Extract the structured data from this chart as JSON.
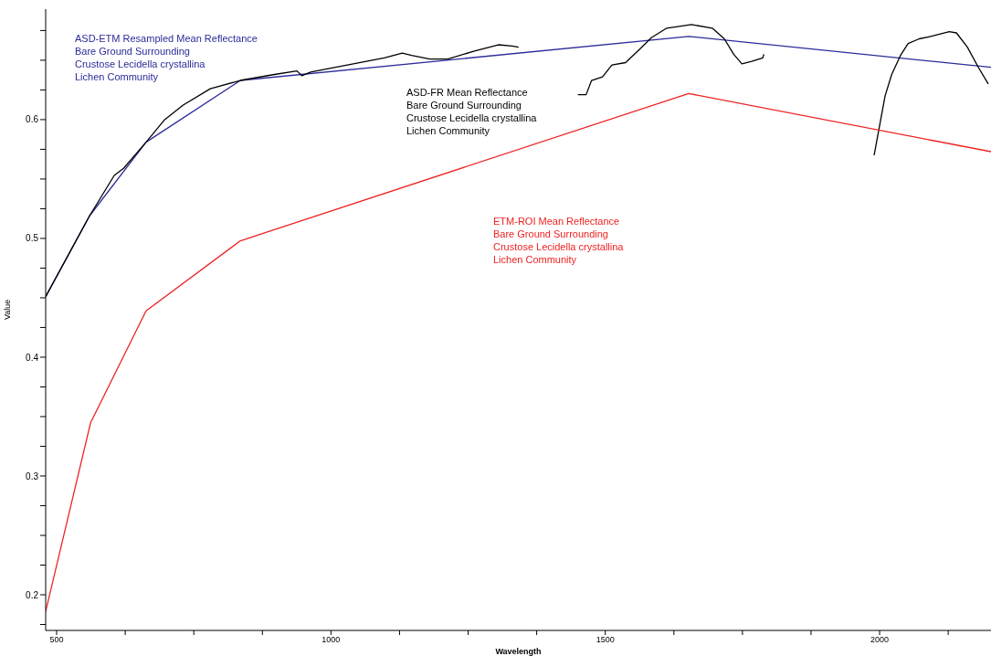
{
  "chart_data": {
    "type": "line",
    "xlabel": "Wavelength",
    "ylabel": "Value",
    "xlim": [
      480,
      2203
    ],
    "ylim": [
      0.17,
      0.693
    ],
    "xticks": [
      500,
      {
        "value": 625,
        "label": null
      },
      {
        "value": 750,
        "label": null
      },
      {
        "value": 875,
        "label": null
      },
      1000,
      {
        "value": 1125,
        "label": null
      },
      {
        "value": 1250,
        "label": null
      },
      {
        "value": 1375,
        "label": null
      },
      1500,
      {
        "value": 1625,
        "label": null
      },
      {
        "value": 1750,
        "label": null
      },
      {
        "value": 1875,
        "label": null
      },
      2000,
      {
        "value": 2125,
        "label": null
      }
    ],
    "yticks": [
      {
        "value": 0.175,
        "label": null
      },
      0.2,
      {
        "value": 0.225,
        "label": null
      },
      {
        "value": 0.25,
        "label": null
      },
      {
        "value": 0.275,
        "label": null
      },
      0.3,
      {
        "value": 0.325,
        "label": null
      },
      {
        "value": 0.35,
        "label": null
      },
      {
        "value": 0.375,
        "label": null
      },
      0.4,
      {
        "value": 0.425,
        "label": null
      },
      {
        "value": 0.45,
        "label": null
      },
      {
        "value": 0.475,
        "label": null
      },
      0.5,
      {
        "value": 0.525,
        "label": null
      },
      {
        "value": 0.55,
        "label": null
      },
      {
        "value": 0.575,
        "label": null
      },
      0.6,
      {
        "value": 0.625,
        "label": null
      },
      {
        "value": 0.65,
        "label": null
      },
      {
        "value": 0.675,
        "label": null
      }
    ],
    "series": [
      {
        "name": "ASD-ETM Resampled Mean Reflectance\nBare Ground Surrounding\nCrustose Lecidella crystallina\nLichen Community",
        "color": "#2b2b9a",
        "x": [
          480,
          560,
          663,
          835,
          1652,
          2203
        ],
        "values": [
          0.451,
          0.519,
          0.581,
          0.633,
          0.67,
          0.644
        ]
      },
      {
        "name": "ASD-FR Mean Reflectance\nBare Ground Surrounding\nCrustose Lecidella crystallina\nLichen Community",
        "color": "#000000",
        "x": [
          480,
          560,
          605,
          622,
          663,
          697,
          730,
          780,
          835,
          897,
          938,
          947,
          963,
          1030,
          1097,
          1130,
          1147,
          1180,
          1213,
          1263,
          1305,
          1330,
          1342,
          1400,
          1450,
          1465,
          1475,
          1495,
          1512,
          1537,
          1562,
          1584,
          1612,
          1657,
          1695,
          1717,
          1734,
          1749,
          1767,
          1787,
          1789,
          1900,
          1990,
          2002,
          2010,
          2022,
          2038,
          2052,
          2072,
          2093,
          2127,
          2140,
          2160,
          2180,
          2198
        ],
        "values": [
          0.451,
          0.519,
          0.553,
          0.559,
          0.581,
          0.6,
          0.612,
          0.626,
          0.633,
          0.638,
          0.641,
          0.637,
          0.64,
          0.646,
          0.652,
          0.656,
          0.654,
          0.651,
          0.651,
          0.658,
          0.663,
          0.662,
          0.661,
          null,
          0.621,
          0.621,
          0.633,
          0.636,
          0.646,
          0.648,
          0.659,
          0.669,
          0.677,
          0.68,
          0.677,
          0.668,
          0.655,
          0.647,
          0.649,
          0.652,
          0.655,
          null,
          0.57,
          0.6,
          0.62,
          0.638,
          0.654,
          0.664,
          0.668,
          0.67,
          0.674,
          0.673,
          0.661,
          0.644,
          0.63
        ]
      },
      {
        "name": "ETM-ROI Mean Reflectance\nBare Ground Surrounding\nCrustose Lecidella crystallina\nLichen Community",
        "color": "#ee2222",
        "x": [
          480,
          562,
          663,
          835,
          1652,
          2203
        ],
        "values": [
          0.186,
          0.345,
          0.439,
          0.498,
          0.622,
          0.573
        ]
      }
    ]
  }
}
